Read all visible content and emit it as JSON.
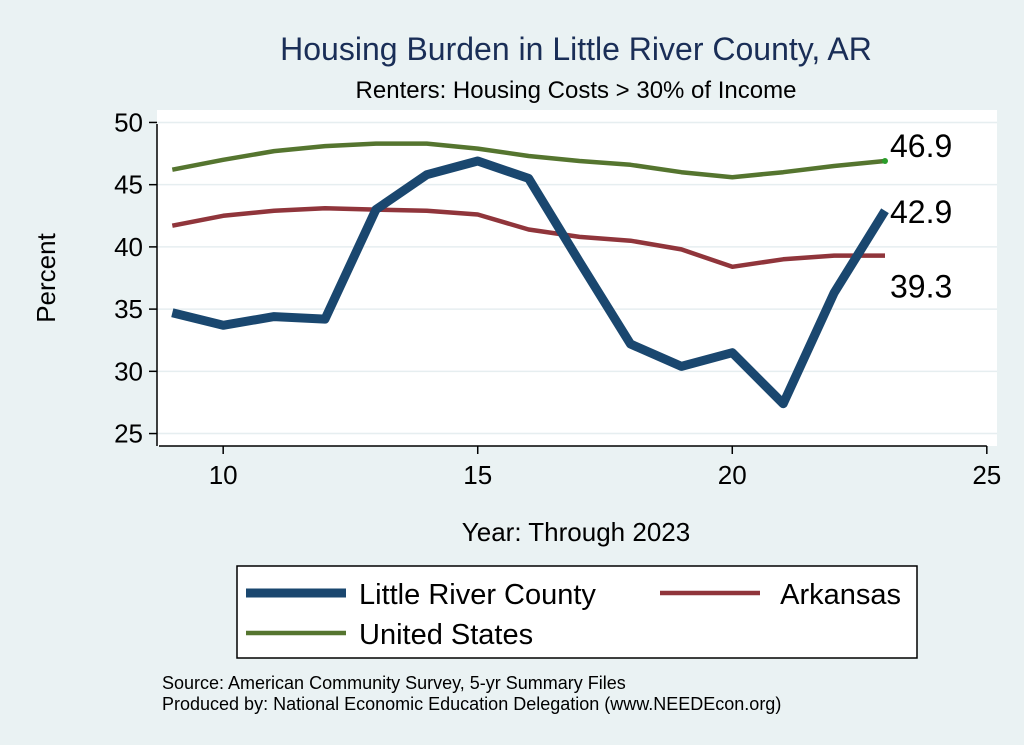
{
  "chart_data": {
    "type": "line",
    "title": "Housing Burden in Little River County, AR",
    "subtitle": "Renters: Housing Costs > 30% of Income",
    "xlabel": "Year: Through 2023",
    "ylabel": "Percent",
    "xlim": [
      8.7,
      25.2
    ],
    "ylim": [
      24,
      51
    ],
    "xticks": [
      10,
      15,
      20,
      25
    ],
    "yticks": [
      25,
      30,
      35,
      40,
      45,
      50
    ],
    "grid": true,
    "legend_position": "bottom",
    "series": [
      {
        "name": "Little River County",
        "color": "#1a476f",
        "width": 9,
        "x": [
          9,
          10,
          11,
          12,
          13,
          14,
          15,
          16,
          17,
          18,
          19,
          20,
          21,
          22,
          23
        ],
        "y": [
          34.7,
          33.7,
          34.4,
          34.2,
          43.0,
          45.8,
          46.9,
          45.5,
          38.8,
          32.2,
          30.4,
          31.5,
          27.4,
          36.3,
          42.9
        ],
        "end_label": "42.9"
      },
      {
        "name": "Arkansas",
        "color": "#90353b",
        "width": 4.5,
        "x": [
          9,
          10,
          11,
          12,
          13,
          14,
          15,
          16,
          17,
          18,
          19,
          20,
          21,
          22,
          23
        ],
        "y": [
          41.7,
          42.5,
          42.9,
          43.1,
          43.0,
          42.9,
          42.6,
          41.4,
          40.8,
          40.5,
          39.8,
          38.4,
          39.0,
          39.3,
          39.3
        ],
        "end_label": "39.3"
      },
      {
        "name": "United States",
        "color": "#55752f",
        "width": 4.5,
        "x": [
          9,
          10,
          11,
          12,
          13,
          14,
          15,
          16,
          17,
          18,
          19,
          20,
          21,
          22,
          23
        ],
        "y": [
          46.2,
          47.0,
          47.7,
          48.1,
          48.3,
          48.3,
          47.9,
          47.3,
          46.9,
          46.6,
          46.0,
          45.6,
          46.0,
          46.5,
          46.9
        ],
        "end_label": "46.9"
      }
    ]
  },
  "source": {
    "line1": "Source: American Community Survey, 5-yr Summary Files",
    "line2": "Produced by: National Economic Education Delegation (www.NEEDEcon.org)"
  }
}
